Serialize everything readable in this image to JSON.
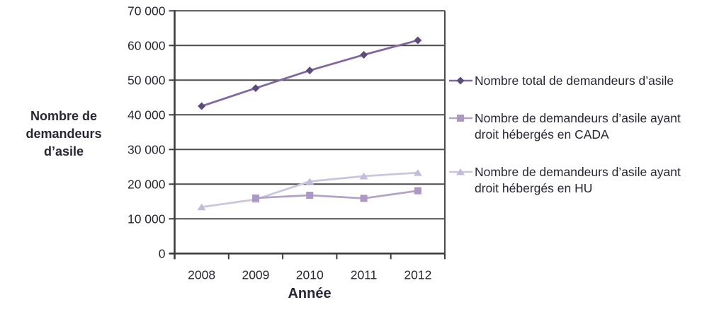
{
  "chart_data": {
    "type": "line",
    "title": "",
    "x_categories": [
      "2008",
      "2009",
      "2010",
      "2011",
      "2012"
    ],
    "xlabel": "Année",
    "ylabel": "Nombre de demandeurs d’asile",
    "ylabel_lines": [
      "Nombre de",
      "demandeurs",
      "d’asile"
    ],
    "ylim": [
      0,
      70000
    ],
    "ytick_interval": 10000,
    "ytick_labels": [
      "0",
      "10 000",
      "20 000",
      "30 000",
      "40 000",
      "50 000",
      "60 000",
      "70 000"
    ],
    "grid": "horizontal",
    "legend_position": "right",
    "series": [
      {
        "name": "Nombre total de demandeurs d’asile",
        "marker": "diamond",
        "line_color": "#8066a5",
        "marker_color": "#5d4a7e",
        "values": [
          42500,
          47700,
          52800,
          57300,
          61500
        ]
      },
      {
        "name": "Nombre de demandeurs d’asile ayant droit hébergés en CADA",
        "marker": "square",
        "line_color": "#b3a2c9",
        "marker_color": "#ab98c5",
        "values": [
          null,
          16000,
          16800,
          15900,
          18100
        ]
      },
      {
        "name": "Nombre de demandeurs d’asile ayant droit hébergés en HU",
        "marker": "triangle",
        "line_color": "#ccc4e1",
        "marker_color": "#c4badb",
        "values": [
          13400,
          15600,
          20800,
          22300,
          23300
        ]
      }
    ],
    "colors": {
      "grid": "#4c4c4c",
      "axis": "#3c3c3c",
      "text": "#282636",
      "background": "#ffffff"
    }
  }
}
